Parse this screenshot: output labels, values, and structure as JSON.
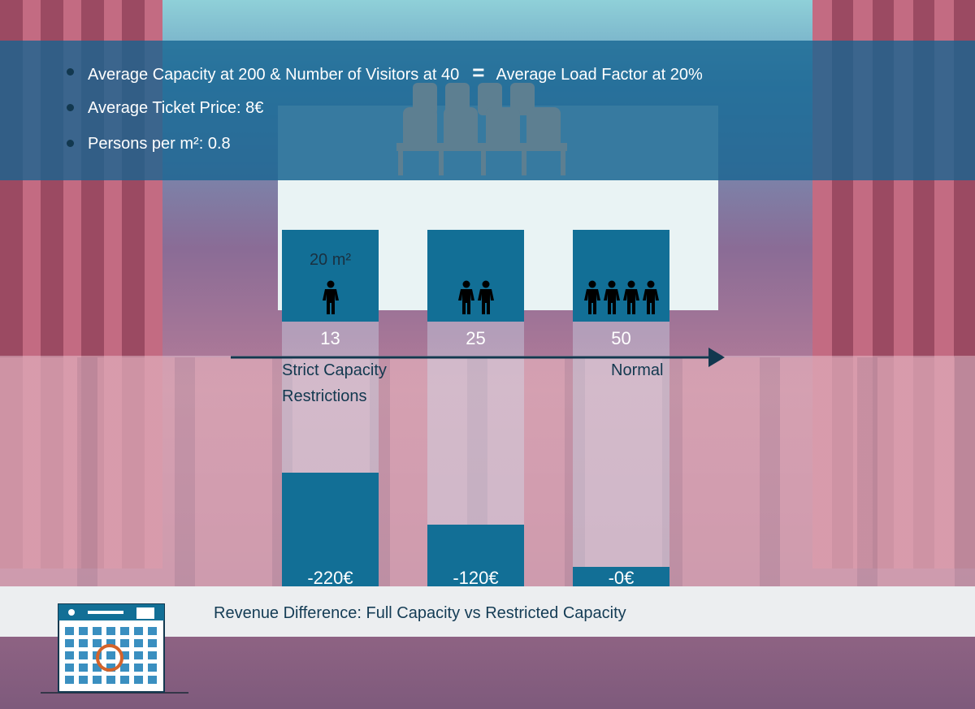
{
  "bullets": [
    {
      "text": "Average Capacity at 200 & Number of Visitors at 40",
      "equals": "=",
      "result": "Average Load Factor at 20%"
    },
    {
      "text": "Average Ticket Price: 8€"
    },
    {
      "text": "Persons per m²: 0.8"
    }
  ],
  "area_label": "20 m²",
  "axis": {
    "left_label": "Strict Capacity\nRestrictions",
    "right_label": "Normal"
  },
  "footer": {
    "title": "Revenue Difference: Full Capacity vs Restricted Capacity"
  },
  "colors": {
    "bar": "#126f96",
    "band": "#1b6690",
    "text_dark": "#12384f"
  },
  "chart_data": {
    "type": "bar",
    "categories": [
      "13",
      "25",
      "50"
    ],
    "series": [
      {
        "values": [
          -220,
          -120,
          0
        ]
      }
    ],
    "people_icons": [
      1,
      2,
      4
    ],
    "value_labels": [
      "-220€",
      "-120€",
      "-0€"
    ],
    "ylim": [
      -260,
      0
    ]
  }
}
